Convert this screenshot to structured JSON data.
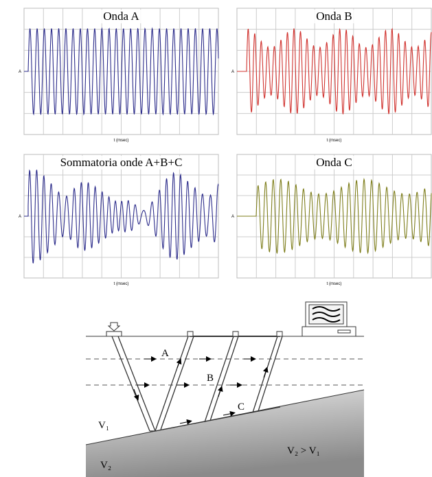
{
  "charts": [
    {
      "title": "Onda A",
      "y_label": "A",
      "x_label": "t (msec)"
    },
    {
      "title": "Onda B",
      "y_label": "A",
      "x_label": "t (msec)"
    },
    {
      "title": "Sommatoria onde A+B+C",
      "y_label": "A",
      "x_label": "t (msec)"
    },
    {
      "title": "Onda C",
      "y_label": "A",
      "x_label": "t (msec)"
    }
  ],
  "diagram": {
    "layer_a": "A",
    "layer_b": "B",
    "interface_c": "C",
    "v1": "V₁",
    "v2": "V₂",
    "relation": "V₂ > V₁"
  }
}
